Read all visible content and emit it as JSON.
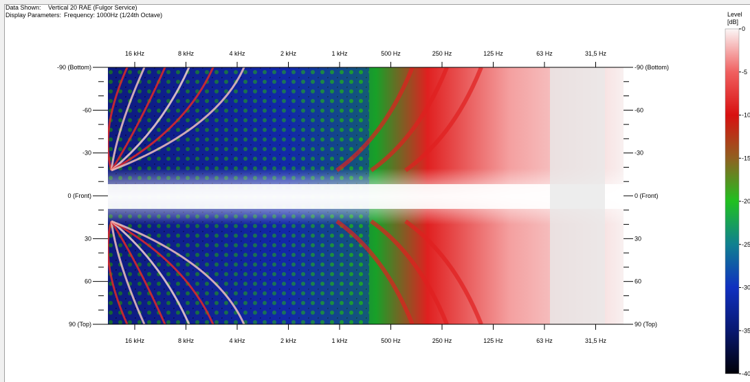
{
  "header": {
    "data_label": "Data Shown:",
    "data_value": "Vertical 20 RAE (Fulgor Service)",
    "display_label": "Display Parameters:",
    "display_value": "Frequency: 1000Hz (1/24th Octave)"
  },
  "colors": {
    "background": "#0a0a40",
    "blue": "#1030c0",
    "green": "#20c020",
    "red": "#e02020",
    "white": "#f8f0f0"
  },
  "chart_data": {
    "type": "heatmap",
    "x_tick_labels": [
      "16 kHz",
      "8 kHz",
      "4 kHz",
      "2 kHz",
      "1 kHz",
      "500 Hz",
      "250 Hz",
      "125 Hz",
      "63 Hz",
      "31,5 Hz"
    ],
    "x_ticks_hz": [
      16000,
      8000,
      4000,
      2000,
      1000,
      500,
      250,
      125,
      63,
      31.5
    ],
    "x_scale": "log",
    "x_direction": "descending",
    "y_tick_labels_left": [
      "-90 (Bottom)",
      "-60",
      "-30",
      "0 (Front)",
      "30",
      "60",
      "90 (Top)"
    ],
    "y_tick_labels_right": [
      "-90 (Bottom)",
      "-60",
      "-30",
      "0 (Front)",
      "30",
      "60",
      "90 (Top)"
    ],
    "y_ticks_deg": [
      -90,
      -60,
      -30,
      0,
      30,
      60,
      90
    ],
    "ylim": [
      -90,
      90
    ],
    "legend": {
      "title": [
        "Level",
        "[dB]"
      ],
      "ticks": [
        "0",
        "-5",
        "-10",
        "-15",
        "-20",
        "-25",
        "-30",
        "-35",
        "-40"
      ],
      "values": [
        0,
        -5,
        -10,
        -15,
        -20,
        -25,
        -30,
        -35,
        -40
      ],
      "colormap": [
        {
          "level": 0,
          "color": "#f8f0f0"
        },
        {
          "level": -10,
          "color": "#e02020"
        },
        {
          "level": -15,
          "color": "#808020"
        },
        {
          "level": -20,
          "color": "#20c020"
        },
        {
          "level": -30,
          "color": "#1030c0"
        },
        {
          "level": -40,
          "color": "#000010"
        }
      ]
    }
  }
}
